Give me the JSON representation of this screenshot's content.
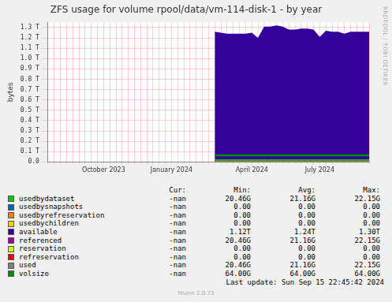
{
  "chart_data": {
    "type": "line",
    "title": "ZFS usage for volume rpool/data/vm-114-disk-1 - by year",
    "ylabel": "bytes",
    "grid": true,
    "categories": [
      null,
      null,
      null,
      null,
      null,
      null,
      null,
      null,
      null,
      "October 2023",
      null,
      null,
      null,
      null,
      null,
      null,
      null,
      null,
      null,
      null,
      "January 2024",
      null,
      null,
      null,
      null,
      null,
      null,
      null,
      null,
      null,
      null,
      null,
      null,
      "April 2024",
      null,
      null,
      null,
      null,
      null,
      null,
      null,
      null,
      null,
      null,
      "July 2024",
      null,
      null,
      null,
      null,
      null,
      null,
      null,
      null
    ],
    "ylim": [
      0,
      1.35
    ],
    "yticks": [
      {
        "value": 0,
        "label": "0.0"
      },
      {
        "value": 0.1,
        "label": "0.1 T"
      },
      {
        "value": 0.2,
        "label": "0.2 T"
      },
      {
        "value": 0.3,
        "label": "0.3 T"
      },
      {
        "value": 0.4,
        "label": "0.4 T"
      },
      {
        "value": 0.5,
        "label": "0.5 T"
      },
      {
        "value": 0.6,
        "label": "0.6 T"
      },
      {
        "value": 0.7,
        "label": "0.7 T"
      },
      {
        "value": 0.8,
        "label": "0.8 T"
      },
      {
        "value": 0.9,
        "label": "0.9 T"
      },
      {
        "value": 1.0,
        "label": "1.0 T"
      },
      {
        "value": 1.1,
        "label": "1.1 T"
      },
      {
        "value": 1.2,
        "label": "1.2 T"
      },
      {
        "value": 1.3,
        "label": "1.3 T"
      }
    ],
    "legend_header": [
      "Cur:",
      "Min:",
      "Avg:",
      "Max:"
    ],
    "series": [
      {
        "name": "usedbydataset",
        "color": "#00CC00",
        "type": "line",
        "cur": "-nan",
        "min": "20.46G",
        "avg": "21.16G",
        "max": "22.15G",
        "values": [
          null,
          null,
          null,
          null,
          null,
          null,
          null,
          null,
          null,
          null,
          null,
          null,
          null,
          null,
          null,
          null,
          null,
          null,
          null,
          null,
          null,
          null,
          null,
          null,
          null,
          null,
          null,
          0.021,
          0.021,
          0.021,
          0.021,
          0.021,
          0.021,
          0.021,
          0.021,
          0.021,
          0.021,
          0.021,
          0.021,
          0.021,
          0.021,
          0.021,
          0.021,
          0.021,
          0.021,
          0.021,
          0.021,
          0.021,
          0.021,
          0.021,
          0.021,
          0.021,
          0.021
        ]
      },
      {
        "name": "usedbysnapshots",
        "color": "#0066B3",
        "type": "line",
        "cur": "-nan",
        "min": "0.00",
        "avg": "0.00",
        "max": "0.00",
        "values": [
          null,
          null,
          null,
          null,
          null,
          null,
          null,
          null,
          null,
          null,
          null,
          null,
          null,
          null,
          null,
          null,
          null,
          null,
          null,
          null,
          null,
          null,
          null,
          null,
          null,
          null,
          null,
          0,
          0,
          0,
          0,
          0,
          0,
          0,
          0,
          0,
          0,
          0,
          0,
          0,
          0,
          0,
          0,
          0,
          0,
          0,
          0,
          0,
          0,
          0,
          0,
          0,
          0
        ]
      },
      {
        "name": "usedbyrefreservation",
        "color": "#FF8000",
        "type": "line",
        "cur": "-nan",
        "min": "0.00",
        "avg": "0.00",
        "max": "0.00",
        "values": [
          null,
          null,
          null,
          null,
          null,
          null,
          null,
          null,
          null,
          null,
          null,
          null,
          null,
          null,
          null,
          null,
          null,
          null,
          null,
          null,
          null,
          null,
          null,
          null,
          null,
          null,
          null,
          0,
          0,
          0,
          0,
          0,
          0,
          0,
          0,
          0,
          0,
          0,
          0,
          0,
          0,
          0,
          0,
          0,
          0,
          0,
          0,
          0,
          0,
          0,
          0,
          0,
          0
        ]
      },
      {
        "name": "usedbychildren",
        "color": "#FFCC00",
        "type": "line",
        "cur": "-nan",
        "min": "0.00",
        "avg": "0.00",
        "max": "0.00",
        "values": [
          null,
          null,
          null,
          null,
          null,
          null,
          null,
          null,
          null,
          null,
          null,
          null,
          null,
          null,
          null,
          null,
          null,
          null,
          null,
          null,
          null,
          null,
          null,
          null,
          null,
          null,
          null,
          0,
          0,
          0,
          0,
          0,
          0,
          0,
          0,
          0,
          0,
          0,
          0,
          0,
          0,
          0,
          0,
          0,
          0,
          0,
          0,
          0,
          0,
          0,
          0,
          0,
          0
        ]
      },
      {
        "name": "available",
        "color": "#330099",
        "type": "area",
        "cur": "-nan",
        "min": "1.12T",
        "avg": "1.24T",
        "max": "1.30T",
        "values": [
          null,
          null,
          null,
          null,
          null,
          null,
          null,
          null,
          null,
          null,
          null,
          null,
          null,
          null,
          null,
          null,
          null,
          null,
          null,
          null,
          null,
          null,
          null,
          null,
          null,
          null,
          null,
          1.26,
          1.25,
          1.24,
          1.24,
          1.24,
          1.24,
          1.25,
          1.2,
          1.31,
          1.31,
          1.32,
          1.31,
          1.28,
          1.28,
          1.29,
          1.29,
          1.28,
          1.21,
          1.27,
          1.26,
          1.26,
          1.24,
          1.26,
          1.26,
          1.26,
          1.26
        ]
      },
      {
        "name": "referenced",
        "color": "#990099",
        "type": "line",
        "cur": "-nan",
        "min": "20.46G",
        "avg": "21.16G",
        "max": "22.15G",
        "values": [
          null,
          null,
          null,
          null,
          null,
          null,
          null,
          null,
          null,
          null,
          null,
          null,
          null,
          null,
          null,
          null,
          null,
          null,
          null,
          null,
          null,
          null,
          null,
          null,
          null,
          null,
          null,
          0.021,
          0.021,
          0.021,
          0.021,
          0.021,
          0.021,
          0.021,
          0.021,
          0.021,
          0.021,
          0.021,
          0.021,
          0.021,
          0.021,
          0.021,
          0.021,
          0.021,
          0.021,
          0.021,
          0.021,
          0.021,
          0.021,
          0.021,
          0.021,
          0.021,
          0.021
        ]
      },
      {
        "name": "reservation",
        "color": "#CCFF00",
        "type": "line",
        "cur": "-nan",
        "min": "0.00",
        "avg": "0.00",
        "max": "0.00",
        "values": [
          null,
          null,
          null,
          null,
          null,
          null,
          null,
          null,
          null,
          null,
          null,
          null,
          null,
          null,
          null,
          null,
          null,
          null,
          null,
          null,
          null,
          null,
          null,
          null,
          null,
          null,
          null,
          0,
          0,
          0,
          0,
          0,
          0,
          0,
          0,
          0,
          0,
          0,
          0,
          0,
          0,
          0,
          0,
          0,
          0,
          0,
          0,
          0,
          0,
          0,
          0,
          0,
          0
        ]
      },
      {
        "name": "refreservation",
        "color": "#FF0000",
        "type": "line",
        "cur": "-nan",
        "min": "0.00",
        "avg": "0.00",
        "max": "0.00",
        "values": [
          null,
          null,
          null,
          null,
          null,
          null,
          null,
          null,
          null,
          null,
          null,
          null,
          null,
          null,
          null,
          null,
          null,
          null,
          null,
          null,
          null,
          null,
          null,
          null,
          null,
          null,
          null,
          0,
          0,
          0,
          0,
          0,
          0,
          0,
          0,
          0,
          0,
          0,
          0,
          0,
          0,
          0,
          0,
          0,
          0,
          0,
          0,
          0,
          0,
          0,
          0,
          0,
          0
        ]
      },
      {
        "name": "used",
        "color": "#808080",
        "type": "area",
        "cur": "-nan",
        "min": "20.46G",
        "avg": "21.16G",
        "max": "22.15G",
        "values": [
          null,
          null,
          null,
          null,
          null,
          null,
          null,
          null,
          null,
          null,
          null,
          null,
          null,
          null,
          null,
          null,
          null,
          null,
          null,
          null,
          null,
          null,
          null,
          null,
          null,
          null,
          null,
          0.021,
          0.021,
          0.021,
          0.021,
          0.021,
          0.021,
          0.021,
          0.021,
          0.021,
          0.021,
          0.021,
          0.021,
          0.021,
          0.021,
          0.021,
          0.021,
          0.021,
          0.021,
          0.021,
          0.021,
          0.021,
          0.021,
          0.021,
          0.021,
          0.021,
          0.021
        ]
      },
      {
        "name": "volsize",
        "color": "#008F00",
        "type": "line",
        "cur": "-nan",
        "min": "64.00G",
        "avg": "64.00G",
        "max": "64.00G",
        "values": [
          null,
          null,
          null,
          null,
          null,
          null,
          null,
          null,
          null,
          null,
          null,
          null,
          null,
          null,
          null,
          null,
          null,
          null,
          null,
          null,
          null,
          null,
          null,
          null,
          null,
          null,
          null,
          0.064,
          0.064,
          0.064,
          0.064,
          0.064,
          0.064,
          0.064,
          0.064,
          0.064,
          0.064,
          0.064,
          0.064,
          0.064,
          0.064,
          0.064,
          0.064,
          0.064,
          0.064,
          0.064,
          0.064,
          0.064,
          0.064,
          0.064,
          0.064,
          0.064,
          0.064
        ]
      }
    ],
    "last_update": "Last update: Sun Sep 15 22:45:42 2024",
    "footer": "Munin 2.0.73",
    "watermark": "RRDTOOL / TOBI OETIKER"
  }
}
